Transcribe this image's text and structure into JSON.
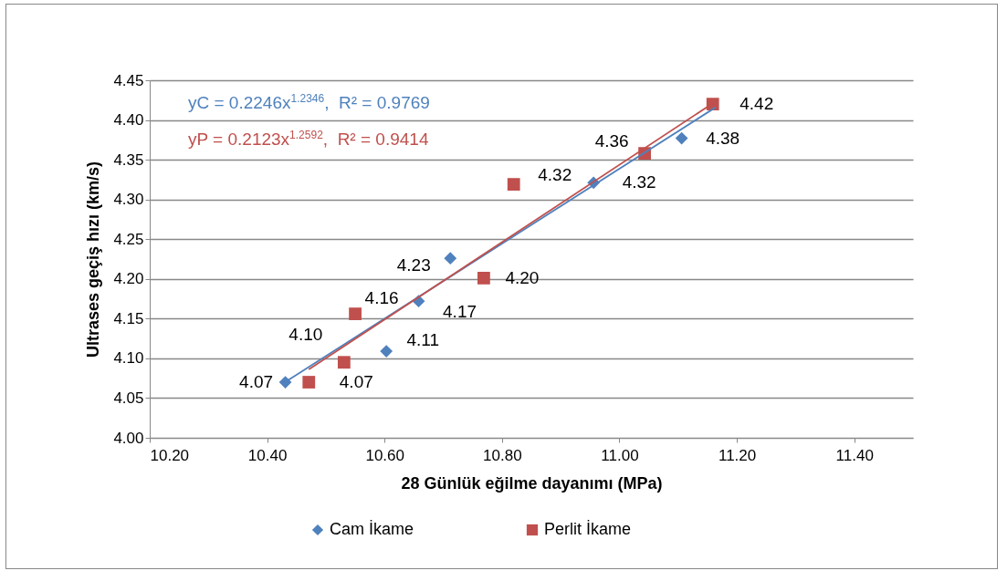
{
  "chart_data": {
    "type": "scatter",
    "xlabel": "28 Günlük eğilme dayanımı (MPa)",
    "ylabel": "Ultrases geçiş hızı (km/s)",
    "xlim": [
      10.2,
      11.5
    ],
    "xticks": [
      {
        "value": 10.2,
        "label": "10.20"
      },
      {
        "value": 10.4,
        "label": "10.40"
      },
      {
        "value": 10.6,
        "label": "10.60"
      },
      {
        "value": 10.8,
        "label": "10.80"
      },
      {
        "value": 11.0,
        "label": "11.00"
      },
      {
        "value": 11.2,
        "label": "11.20"
      },
      {
        "value": 11.4,
        "label": "11.40"
      }
    ],
    "ylim": [
      4.0,
      4.45
    ],
    "yticks": [
      {
        "value": 4.0,
        "label": "4.00"
      },
      {
        "value": 4.05,
        "label": "4.05"
      },
      {
        "value": 4.1,
        "label": "4.10"
      },
      {
        "value": 4.15,
        "label": "4.15"
      },
      {
        "value": 4.2,
        "label": "4.20"
      },
      {
        "value": 4.25,
        "label": "4.25"
      },
      {
        "value": 4.3,
        "label": "4.30"
      },
      {
        "value": 4.35,
        "label": "4.35"
      },
      {
        "value": 4.4,
        "label": "4.40"
      },
      {
        "value": 4.45,
        "label": "4.45"
      }
    ],
    "grid": "y",
    "legend": "bottom",
    "annotations": [
      "yC = 0.2246x$^{1.2346}$,  R² = 0.9769",
      "yP = 0.2123x$^{1.2592}$,  R² = 0.9414"
    ],
    "series": [
      {
        "name": "Cam İkame",
        "type": "scatter",
        "marker": "diamond",
        "color": "#4f81bd",
        "x": [
          10.431,
          10.603,
          10.658,
          10.712,
          10.956,
          11.106
        ],
        "values": [
          4.07,
          4.109,
          4.172,
          4.226,
          4.321,
          4.377
        ],
        "value_labels": [
          "4.07",
          "4.11",
          "4.17",
          "4.23",
          "4.32",
          "4.38"
        ]
      },
      {
        "name": "Perlit İkame",
        "type": "scatter",
        "marker": "square",
        "color": "#c0504d",
        "x": [
          10.471,
          10.531,
          10.55,
          10.769,
          10.82,
          11.043,
          11.159
        ],
        "values": [
          4.07,
          4.095,
          4.156,
          4.201,
          4.319,
          4.358,
          4.42
        ],
        "value_labels": [
          "4.07",
          "4.10",
          "4.16",
          "4.20",
          "4.32",
          "4.36",
          "4.42"
        ]
      },
      {
        "type": "line",
        "color": "#4f81bd",
        "x": [
          10.428,
          11.164
        ],
        "values": [
          4.069,
          4.416
        ]
      },
      {
        "type": "line",
        "color": "#c0504d",
        "x": [
          10.471,
          11.159
        ],
        "values": [
          4.086,
          4.421
        ]
      }
    ]
  }
}
